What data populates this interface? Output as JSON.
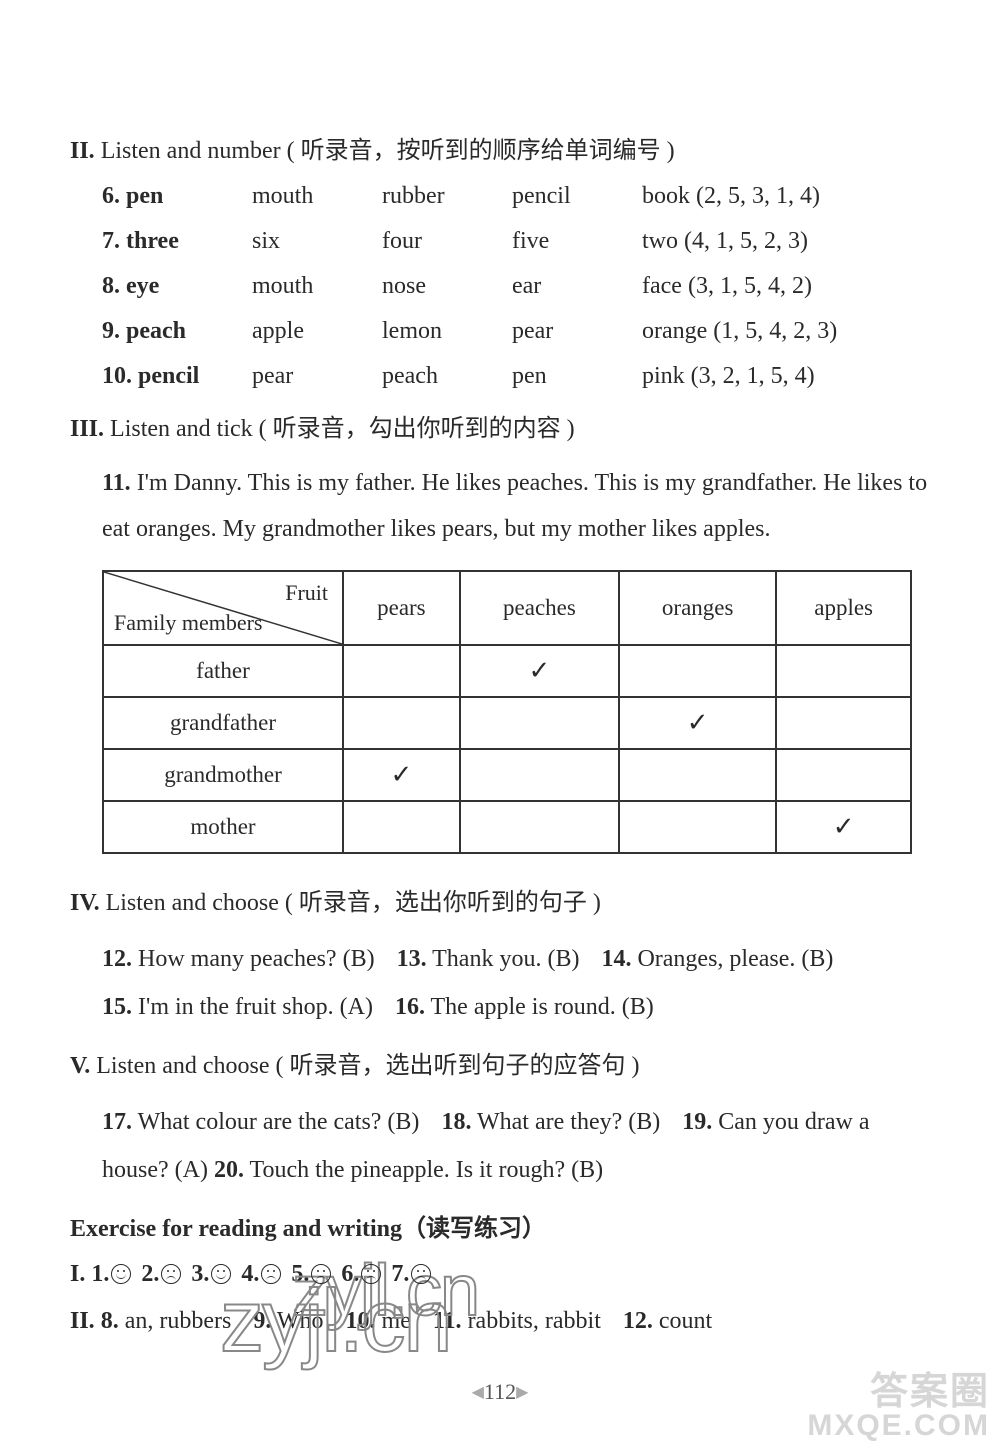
{
  "sections": {
    "II": {
      "roman": "II.",
      "title_en": "Listen and number",
      "title_cn": "( 听录音，按听到的顺序给单词编号 )",
      "rows": [
        {
          "num": "6.",
          "w1": "pen",
          "w2": "mouth",
          "w3": "rubber",
          "w4": "pencil",
          "last": "book (2, 5, 3, 1, 4)"
        },
        {
          "num": "7.",
          "w1": "three",
          "w2": "six",
          "w3": "four",
          "w4": "five",
          "last": "two (4, 1, 5, 2, 3)"
        },
        {
          "num": "8.",
          "w1": "eye",
          "w2": "mouth",
          "w3": "nose",
          "w4": "ear",
          "last": "face (3, 1, 5, 4, 2)"
        },
        {
          "num": "9.",
          "w1": "peach",
          "w2": "apple",
          "w3": "lemon",
          "w4": "pear",
          "last": "orange (1, 5, 4, 2, 3)"
        },
        {
          "num": "10.",
          "w1": "pencil",
          "w2": "pear",
          "w3": "peach",
          "w4": "pen",
          "last": "pink (3, 2, 1, 5, 4)"
        }
      ]
    },
    "III": {
      "roman": "III.",
      "title_en": "Listen and tick",
      "title_cn": "( 听录音，勾出你听到的内容 )",
      "item11_num": "11.",
      "item11_text": "I'm Danny. This is my father. He likes peaches. This is my grandfather. He likes to eat oranges. My grandmother likes pears, but my mother likes apples.",
      "table": {
        "diag_top": "Fruit",
        "diag_bottom": "Family members",
        "cols": [
          "pears",
          "peaches",
          "oranges",
          "apples"
        ],
        "rows": [
          {
            "label": "father",
            "ticks": [
              "",
              "✓",
              "",
              ""
            ]
          },
          {
            "label": "grandfather",
            "ticks": [
              "",
              "",
              "✓",
              ""
            ]
          },
          {
            "label": "grandmother",
            "ticks": [
              "✓",
              "",
              "",
              ""
            ]
          },
          {
            "label": "mother",
            "ticks": [
              "",
              "",
              "",
              "✓"
            ]
          }
        ]
      }
    },
    "IV": {
      "roman": "IV.",
      "title_en": "Listen and choose",
      "title_cn": "( 听录音，选出你听到的句子 )",
      "items": [
        {
          "num": "12.",
          "text": "How many peaches? (B)"
        },
        {
          "num": "13.",
          "text": "Thank you. (B)"
        },
        {
          "num": "14.",
          "text": "Oranges, please. (B)"
        },
        {
          "num": "15.",
          "text": "I'm in the fruit shop. (A)"
        },
        {
          "num": "16.",
          "text": "The apple is round. (B)"
        }
      ]
    },
    "V": {
      "roman": "V.",
      "title_en": "Listen and choose",
      "title_cn": "( 听录音，选出听到句子的应答句 )",
      "items": [
        {
          "num": "17.",
          "text": "What colour are the cats? (B)"
        },
        {
          "num": "18.",
          "text": "What are they? (B)"
        },
        {
          "num": "19.",
          "text": "Can you draw a house? (A)"
        },
        {
          "num": "20.",
          "text": "Touch the pineapple. Is it rough? (B)"
        }
      ]
    },
    "Exercise": {
      "title": "Exercise for reading and writing（读写练习）",
      "I": {
        "roman": "I.",
        "faces": [
          {
            "num": "1.",
            "type": "smile"
          },
          {
            "num": "2.",
            "type": "sad"
          },
          {
            "num": "3.",
            "type": "smile"
          },
          {
            "num": "4.",
            "type": "sad"
          },
          {
            "num": "5.",
            "type": "sad"
          },
          {
            "num": "6.",
            "type": "sad"
          },
          {
            "num": "7.",
            "type": "sad"
          }
        ]
      },
      "II": {
        "roman": "II.",
        "items": [
          {
            "num": "8.",
            "text": "an, rubbers"
          },
          {
            "num": "9.",
            "text": "Who"
          },
          {
            "num": "10.",
            "text": "me"
          },
          {
            "num": "11.",
            "text": "rabbits, rabbit"
          },
          {
            "num": "12.",
            "text": "count"
          }
        ]
      }
    }
  },
  "page_number": "112",
  "watermark_text": "zyjl.cn",
  "bottom_wm": {
    "top": "答案圈",
    "bottom": "MXQE.COM"
  },
  "colors": {
    "text": "#2a2a2a",
    "border": "#333333",
    "watermark_stroke": "#888888",
    "bg": "#ffffff"
  }
}
